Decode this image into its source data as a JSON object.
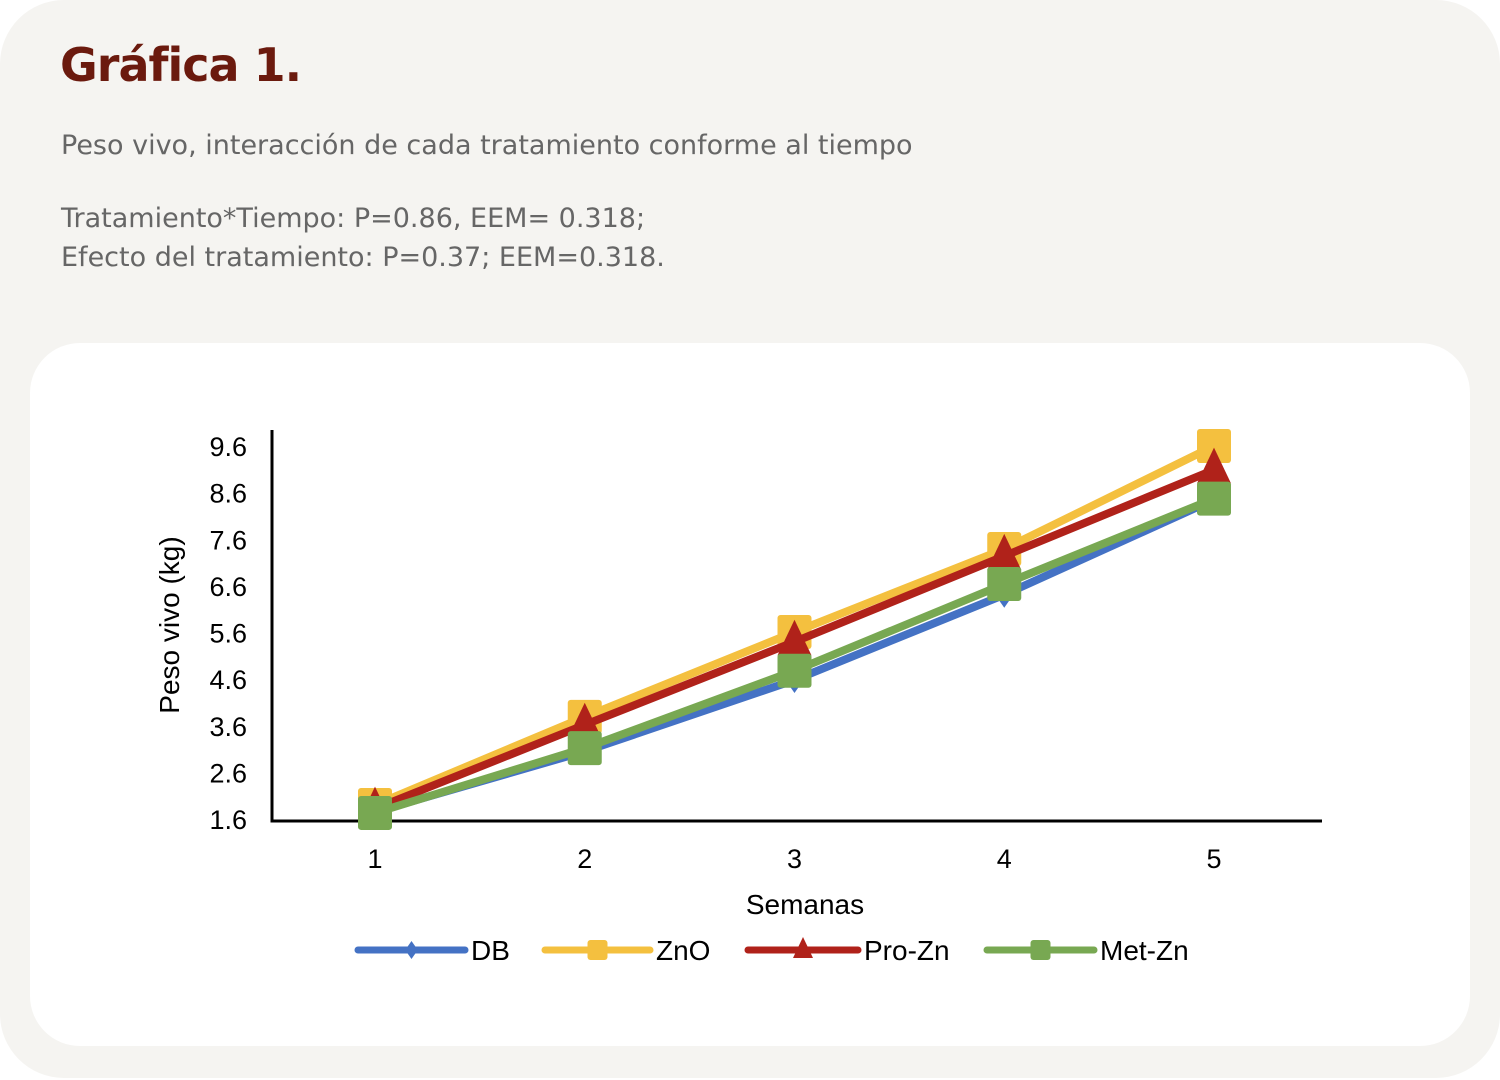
{
  "header": {
    "title": "Gráfica 1.",
    "subtitle": "Peso vivo, interacción de cada tratamiento conforme al tiempo",
    "stats_line1": "Tratamiento*Tiempo: P=0.86, EEM= 0.318;",
    "stats_line2": "Efecto del tratamiento: P=0.37; EEM=0.318."
  },
  "chart_data": {
    "type": "line",
    "title": "",
    "xlabel": "Semanas",
    "ylabel": "Peso vivo (kg)",
    "categories": [
      "1",
      "2",
      "3",
      "4",
      "5"
    ],
    "yticks": [
      "1.6",
      "2.6",
      "3.6",
      "4.6",
      "5.6",
      "6.6",
      "7.6",
      "8.6",
      "9.6"
    ],
    "ylim": [
      1.6,
      9.6
    ],
    "legend_position": "bottom",
    "series": [
      {
        "name": "DB",
        "color": "#4472c4",
        "marker": "diamond",
        "values": [
          1.75,
          3.05,
          4.58,
          6.41,
          8.45
        ]
      },
      {
        "name": "ZnO",
        "color": "#f4c03f",
        "marker": "square",
        "values": [
          1.9,
          3.79,
          5.61,
          7.39,
          9.6
        ]
      },
      {
        "name": "Pro-Zn",
        "color": "#b0221a",
        "marker": "triangle",
        "values": [
          1.82,
          3.62,
          5.4,
          7.24,
          9.09
        ]
      },
      {
        "name": "Met-Zn",
        "color": "#78a852",
        "marker": "square",
        "values": [
          1.73,
          3.12,
          4.78,
          6.64,
          8.47
        ]
      }
    ]
  }
}
